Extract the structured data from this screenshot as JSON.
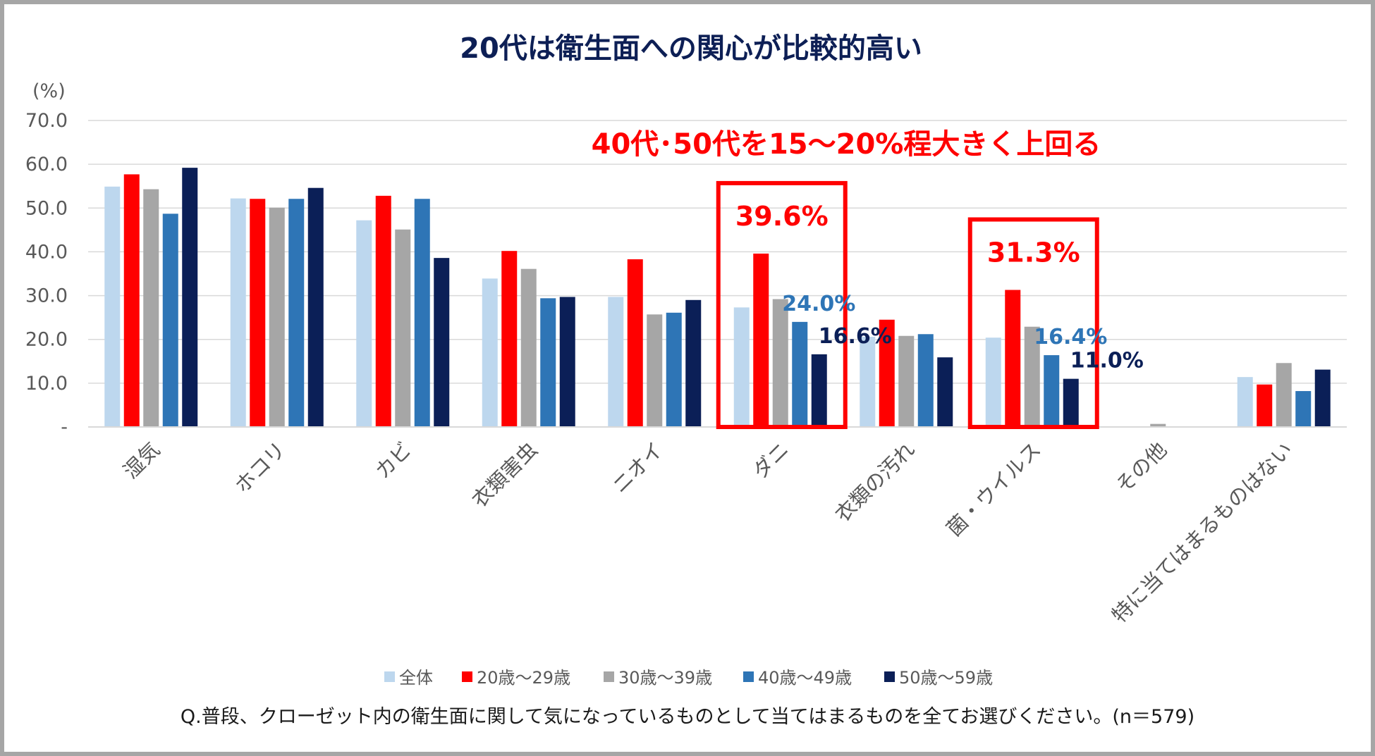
{
  "chart_data": {
    "type": "bar",
    "title": "20代は衛生面への関心が比較的高い",
    "yunit": "(%)",
    "ylim": [
      0,
      70
    ],
    "yticks": [
      {
        "value": 0,
        "label": "-"
      },
      {
        "value": 10,
        "label": "10.0"
      },
      {
        "value": 20,
        "label": "20.0"
      },
      {
        "value": 30,
        "label": "30.0"
      },
      {
        "value": 40,
        "label": "40.0"
      },
      {
        "value": 50,
        "label": "50.0"
      },
      {
        "value": 60,
        "label": "60.0"
      },
      {
        "value": 70,
        "label": "70.0"
      }
    ],
    "categories": [
      "湿気",
      "ホコリ",
      "カビ",
      "衣類害虫",
      "ニオイ",
      "ダニ",
      "衣類の汚れ",
      "菌・ウイルス",
      "その他",
      "特に当てはまるものはない"
    ],
    "series": [
      {
        "name": "全体",
        "color": "#bdd7ee",
        "values": [
          54.9,
          52.2,
          47.2,
          33.9,
          29.7,
          27.3,
          20.6,
          20.4,
          0,
          11.4
        ]
      },
      {
        "name": "20歳～29歳",
        "color": "#ff0000",
        "values": [
          57.7,
          52.1,
          52.8,
          40.2,
          38.3,
          39.6,
          24.5,
          31.3,
          0,
          9.7
        ]
      },
      {
        "name": "30歳～39歳",
        "color": "#a6a6a6",
        "values": [
          54.3,
          50.1,
          45.1,
          36.1,
          25.7,
          29.2,
          20.8,
          22.9,
          0.7,
          14.6
        ]
      },
      {
        "name": "40歳～49歳",
        "color": "#2e75b6",
        "values": [
          48.7,
          52.1,
          52.1,
          29.4,
          26.1,
          24.0,
          21.2,
          16.4,
          0,
          8.2
        ]
      },
      {
        "name": "50歳～59歳",
        "color": "#0b1f57",
        "values": [
          59.2,
          54.6,
          38.6,
          29.7,
          29.0,
          16.6,
          15.9,
          11.0,
          0,
          13.1
        ]
      }
    ],
    "legend_position": "bottom",
    "headline": "40代･50代を15～20%程大きく上回る",
    "highlights": [
      {
        "category": "ダニ",
        "labels": [
          {
            "series": "20歳～29歳",
            "text": "39.6%",
            "color": "#ff0000"
          },
          {
            "series": "40歳～49歳",
            "text": "24.0%",
            "color": "#2e75b6"
          },
          {
            "series": "50歳～59歳",
            "text": "16.6%",
            "color": "#0b1f57"
          }
        ]
      },
      {
        "category": "菌・ウイルス",
        "labels": [
          {
            "series": "20歳～29歳",
            "text": "31.3%",
            "color": "#ff0000"
          },
          {
            "series": "40歳～49歳",
            "text": "16.4%",
            "color": "#2e75b6"
          },
          {
            "series": "50歳～59歳",
            "text": "11.0%",
            "color": "#0b1f57"
          }
        ]
      }
    ],
    "note": "Q.普段、クローゼット内の衛生面に関して気になっているものとして当てはまるものを全てお選びください。(n＝579)"
  }
}
